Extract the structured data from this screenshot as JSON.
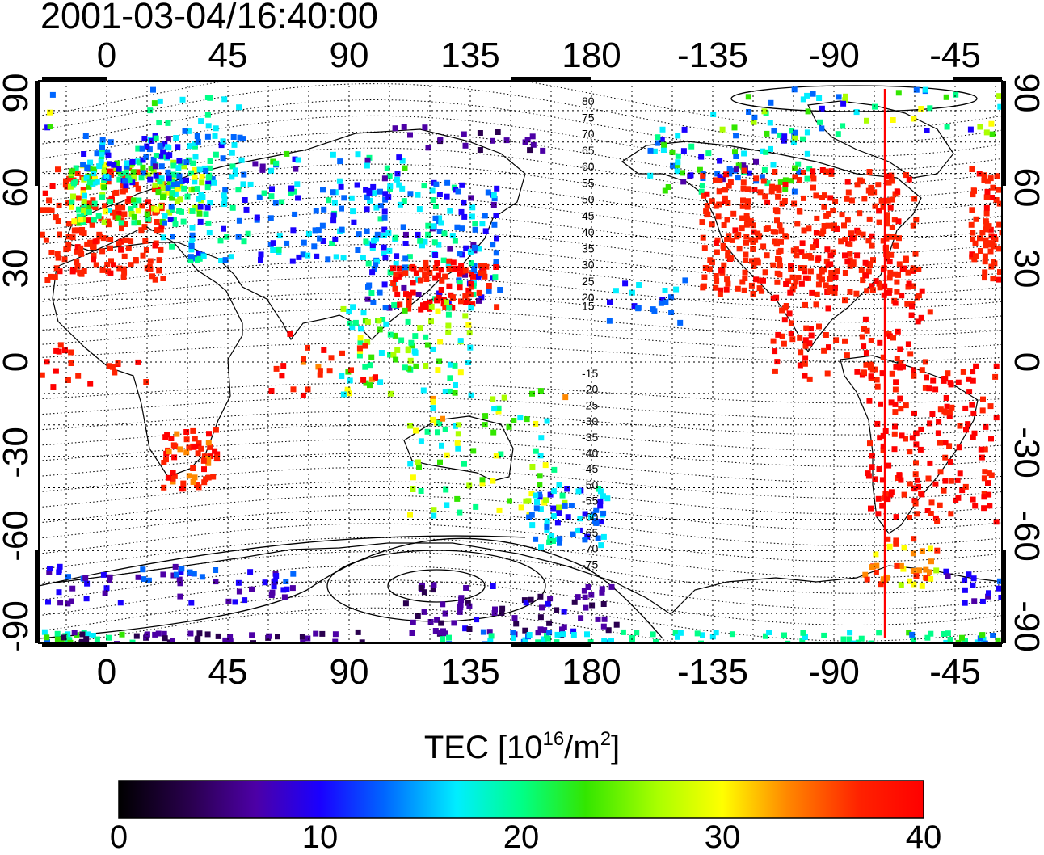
{
  "title": "2001-03-04/16:40:00",
  "map": {
    "top_lon_ticks": [
      "0",
      "45",
      "90",
      "135",
      "180",
      "-135",
      "-90",
      "-45"
    ],
    "bottom_lon_ticks": [
      "0",
      "45",
      "90",
      "135",
      "180",
      "-135",
      "-90",
      "-45"
    ],
    "left_lat_ticks": [
      "90",
      "60",
      "30",
      "0",
      "-30",
      "-60",
      "-90"
    ],
    "right_lat_ticks": [
      "90",
      "60",
      "30",
      "0",
      "-30",
      "-60",
      "-90"
    ],
    "contour_labels_north": [
      "80",
      "75",
      "70",
      "65",
      "60",
      "55",
      "50",
      "45",
      "40",
      "35",
      "30",
      "25",
      "20",
      "15"
    ],
    "contour_labels_south": [
      "-15",
      "-20",
      "-25",
      "-30",
      "-35",
      "-40",
      "-45",
      "-50",
      "-55",
      "-60",
      "-65",
      "-70",
      "-75"
    ],
    "meridian_marker_lon": -71,
    "meridian_marker_color": "#ff0000"
  },
  "colorbar": {
    "title": "TEC  [10",
    "title_exp": "16",
    "title_unit": "/m",
    "title_unit_exp": "2",
    "title_close": "]",
    "ticks": [
      "0",
      "10",
      "20",
      "30",
      "40"
    ],
    "min": 0,
    "max": 40,
    "colormap": [
      "#000000",
      "#2a004f",
      "#4d00a6",
      "#1a00ff",
      "#0066ff",
      "#00eeff",
      "#00ff88",
      "#33e600",
      "#aaff00",
      "#ffff00",
      "#ff8800",
      "#ff2200",
      "#ff0000"
    ]
  }
}
